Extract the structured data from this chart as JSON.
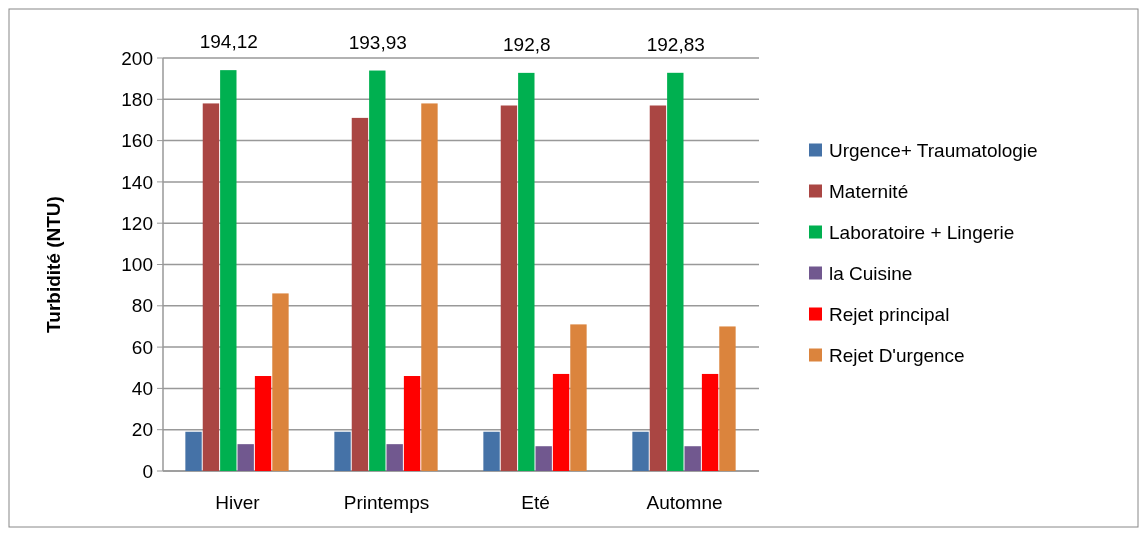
{
  "chart_data": {
    "type": "bar",
    "ylabel": "Turbidité (NTU)",
    "categories": [
      "Hiver",
      "Printemps",
      "Eté",
      "Automne"
    ],
    "series": [
      {
        "name": "Urgence+ Traumatologie",
        "color": "#4572a7",
        "values": [
          19,
          19,
          19,
          19
        ]
      },
      {
        "name": "Maternité",
        "color": "#aa4643",
        "values": [
          178,
          171,
          177,
          177
        ]
      },
      {
        "name": "Laboratoire + Lingerie",
        "color": "#00b050",
        "values": [
          194.12,
          193.93,
          192.8,
          192.83
        ],
        "value_labels": [
          "194,12",
          "193,93",
          "192,8",
          "192,83"
        ]
      },
      {
        "name": "la Cuisine",
        "color": "#71588f",
        "values": [
          13,
          13,
          12,
          12
        ]
      },
      {
        "name": "Rejet principal",
        "color": "#ff0000",
        "values": [
          46,
          46,
          47,
          47
        ]
      },
      {
        "name": "Rejet D'urgence",
        "color": "#db843d",
        "values": [
          86,
          178,
          71,
          70
        ]
      }
    ],
    "ylim": [
      0,
      200
    ],
    "yticks": [
      0,
      20,
      40,
      60,
      80,
      100,
      120,
      140,
      160,
      180,
      200
    ],
    "grid": "y",
    "legend": "right"
  }
}
